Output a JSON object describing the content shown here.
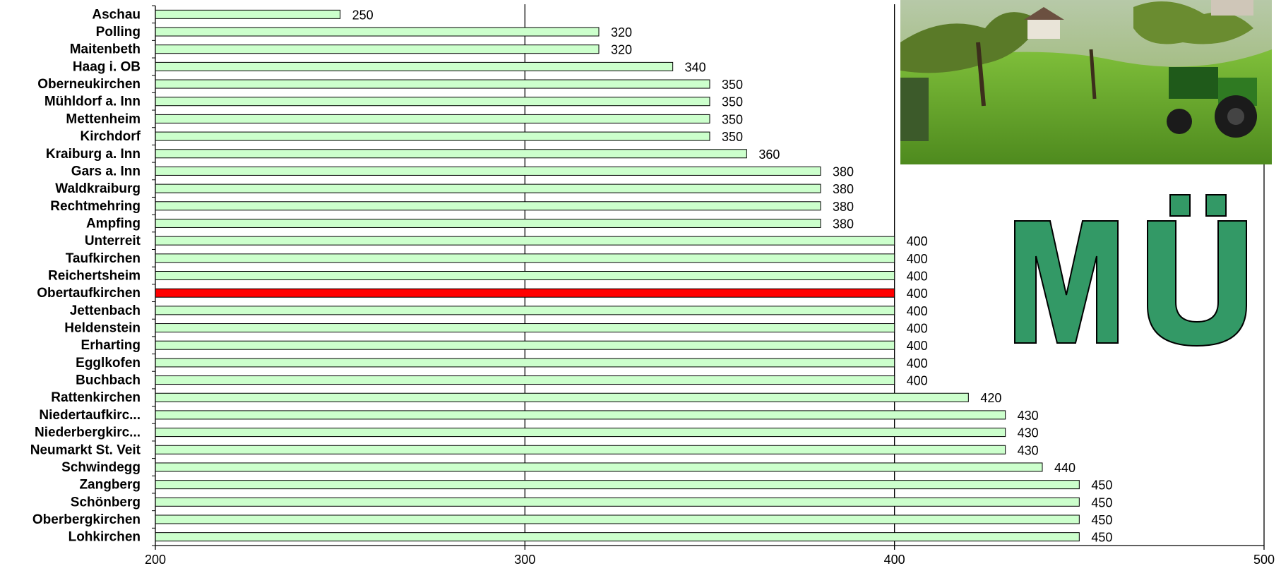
{
  "chart_data": {
    "type": "bar",
    "orientation": "horizontal",
    "categories": [
      "Aschau",
      "Polling",
      "Maitenbeth",
      "Haag i. OB",
      "Oberneukirchen",
      "Mühldorf a. Inn",
      "Mettenheim",
      "Kirchdorf",
      "Kraiburg a. Inn",
      "Gars a. Inn",
      "Waldkraiburg",
      "Rechtmehring",
      "Ampfing",
      "Unterreit",
      "Taufkirchen",
      "Reichertsheim",
      "Obertaufkirchen",
      "Jettenbach",
      "Heldenstein",
      "Erharting",
      "Egglkofen",
      "Buchbach",
      "Rattenkirchen",
      "Niedertaufkirc...",
      "Niederbergkirc...",
      "Neumarkt St. Veit",
      "Schwindegg",
      "Zangberg",
      "Schönberg",
      "Oberbergkirchen",
      "Lohkirchen"
    ],
    "values": [
      250,
      320,
      320,
      340,
      350,
      350,
      350,
      350,
      360,
      380,
      380,
      380,
      380,
      400,
      400,
      400,
      400,
      400,
      400,
      400,
      400,
      400,
      420,
      430,
      430,
      430,
      440,
      450,
      450,
      450,
      450
    ],
    "value_labels": [
      "250",
      "320",
      "320",
      "340",
      "350",
      "350",
      "350",
      "350",
      "360",
      "380",
      "380",
      "380",
      "380",
      "400",
      "400",
      "400",
      "400",
      "400",
      "400",
      "400",
      "400",
      "400",
      "420",
      "430",
      "430",
      "430",
      "440",
      "450",
      "450",
      "450",
      "450"
    ],
    "highlight_category": "Obertaufkirchen",
    "bar_color": "#ccffcc",
    "highlight_color": "#ff0000",
    "xlim": [
      200,
      500
    ],
    "x_ticks": [
      "200",
      "300",
      "400",
      "500"
    ],
    "grid": "vertical gridlines",
    "title": "",
    "xlabel": "",
    "ylabel": ""
  },
  "logo": {
    "text": "MÜ",
    "color": "#339966"
  },
  "photo": {
    "subject": "green tractor in an orchard meadow"
  }
}
